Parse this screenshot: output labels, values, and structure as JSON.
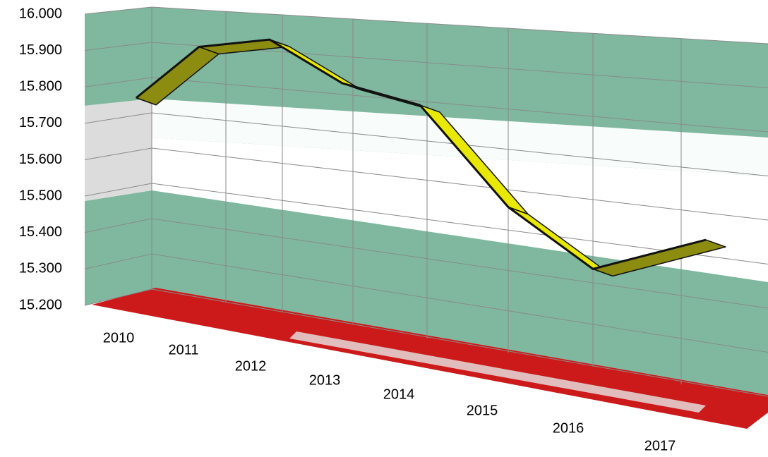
{
  "chart_data": {
    "type": "line3d",
    "categories": [
      "2010",
      "2011",
      "2012",
      "2013",
      "2014",
      "2015",
      "2016",
      "2017"
    ],
    "values": [
      15770,
      15910,
      15930,
      15810,
      15750,
      15470,
      15300,
      15380
    ],
    "color": "#e8e800",
    "ylim": [
      15200,
      16000
    ],
    "yticks": [
      {
        "value": 15200,
        "label": "15.200"
      },
      {
        "value": 15300,
        "label": "15.300"
      },
      {
        "value": 15400,
        "label": "15.400"
      },
      {
        "value": 15500,
        "label": "15.500"
      },
      {
        "value": 15600,
        "label": "15.600"
      },
      {
        "value": 15700,
        "label": "15.700"
      },
      {
        "value": 15800,
        "label": "15.800"
      },
      {
        "value": 15900,
        "label": "15.900"
      },
      {
        "value": 16000,
        "label": "16.000"
      }
    ],
    "grid": true
  }
}
